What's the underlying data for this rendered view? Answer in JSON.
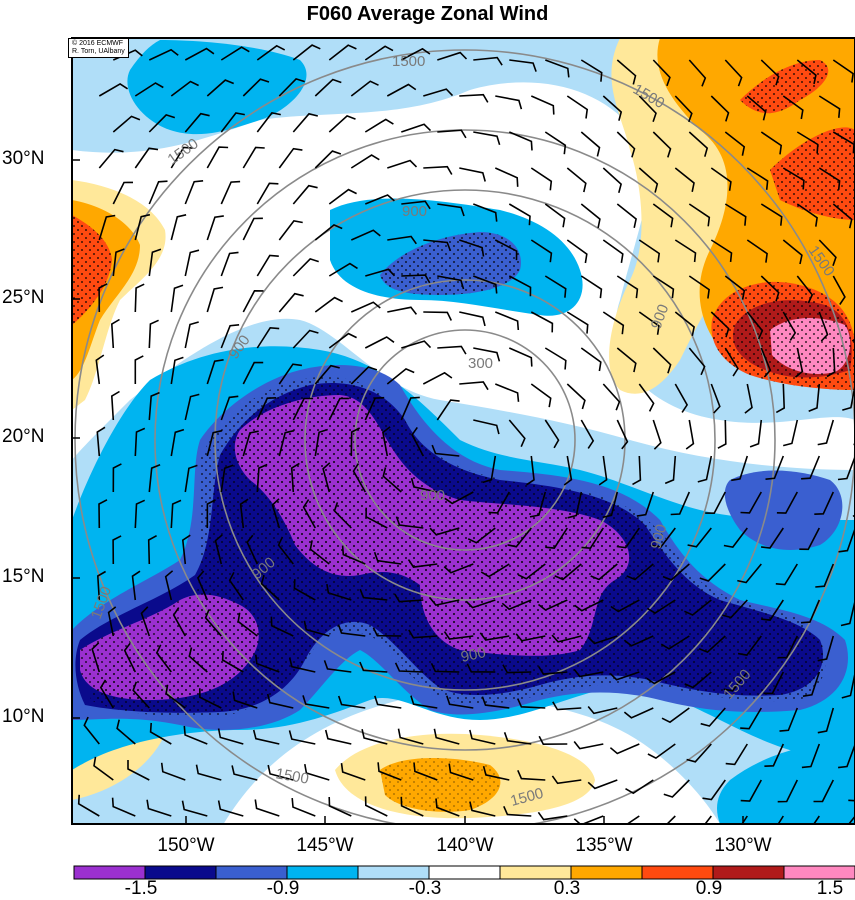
{
  "title": "F060 Average Zonal Wind",
  "credit": [
    "© 2016 ECMWF",
    "R. Torn, UAlbany"
  ],
  "lat_labels": [
    "30°N",
    "25°N",
    "20°N",
    "15°N",
    "10°N"
  ],
  "lon_labels": [
    "150°W",
    "145°W",
    "140°W",
    "135°W",
    "130°W"
  ],
  "contour_labels": [
    "300",
    "900",
    "1500"
  ],
  "colorbar": {
    "labels": [
      "-1.5",
      "-0.9",
      "-0.3",
      "0.3",
      "0.9",
      "1.5"
    ],
    "colors": [
      "#9b30d0",
      "#0a0a8c",
      "#3a5fd0",
      "#00b4f0",
      "#b0def8",
      "#ffffff",
      "#ffe89a",
      "#ffa800",
      "#ff4a10",
      "#b01a1a",
      "#ff88c0"
    ]
  }
}
